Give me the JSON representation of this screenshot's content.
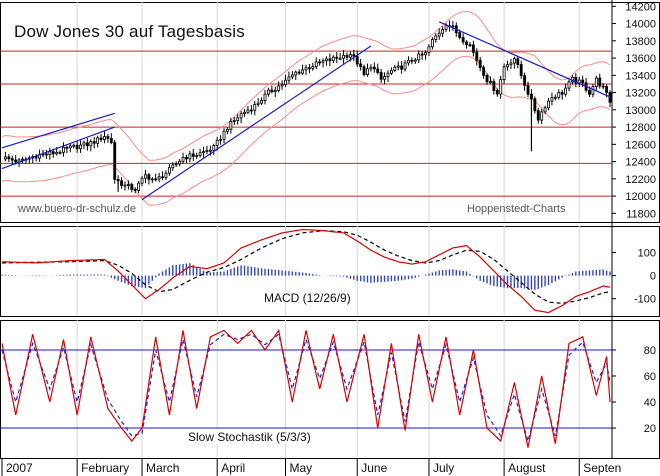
{
  "title": "Dow Jones 30 auf Tagesbasis",
  "watermark_left": "www.buero-dr-schulz.de",
  "watermark_right": "Hoppenstedt-Charts",
  "colors": {
    "price": "#000000",
    "bollinger": "#ff8a8a",
    "support_lines": "#cc2222",
    "trend_lines": "#1a1acc",
    "macd": "#dd0000",
    "signal": "#000000",
    "histogram": "#3344cc",
    "stoch_k": "#dd0000",
    "stoch_d": "#2222cc",
    "stoch_levels": "#1a1acc",
    "grid": "#d8d8d8"
  },
  "chart_data": [
    {
      "type": "candlestick",
      "title": "Dow Jones 30 auf Tagesbasis",
      "ylim": [
        11700,
        14250
      ],
      "yticks": [
        11800,
        12000,
        12200,
        12400,
        12600,
        12800,
        13000,
        13200,
        13400,
        13600,
        13800,
        14000,
        14200
      ],
      "months": [
        "2007",
        "February",
        "March",
        "April",
        "May",
        "June",
        "July",
        "August",
        "Septen"
      ],
      "month_days": [
        0,
        22,
        41,
        63,
        83,
        104,
        125,
        147,
        169
      ],
      "total_days": 178,
      "close_path": [
        [
          0,
          12450
        ],
        [
          5,
          12400
        ],
        [
          10,
          12470
        ],
        [
          15,
          12500
        ],
        [
          20,
          12560
        ],
        [
          25,
          12600
        ],
        [
          28,
          12650
        ],
        [
          30,
          12700
        ],
        [
          32,
          12630
        ],
        [
          33,
          12200
        ],
        [
          36,
          12120
        ],
        [
          39,
          12080
        ],
        [
          42,
          12240
        ],
        [
          45,
          12180
        ],
        [
          49,
          12300
        ],
        [
          53,
          12450
        ],
        [
          57,
          12480
        ],
        [
          62,
          12560
        ],
        [
          66,
          12800
        ],
        [
          70,
          12950
        ],
        [
          74,
          13050
        ],
        [
          78,
          13200
        ],
        [
          82,
          13300
        ],
        [
          86,
          13430
        ],
        [
          90,
          13500
        ],
        [
          94,
          13560
        ],
        [
          98,
          13600
        ],
        [
          102,
          13650
        ],
        [
          104,
          13550
        ],
        [
          106,
          13400
        ],
        [
          108,
          13520
        ],
        [
          111,
          13350
        ],
        [
          114,
          13450
        ],
        [
          117,
          13500
        ],
        [
          121,
          13600
        ],
        [
          124,
          13650
        ],
        [
          126,
          13800
        ],
        [
          128,
          13900
        ],
        [
          130,
          14000
        ],
        [
          132,
          13950
        ],
        [
          134,
          13850
        ],
        [
          137,
          13750
        ],
        [
          140,
          13500
        ],
        [
          142,
          13350
        ],
        [
          145,
          13200
        ],
        [
          147,
          13500
        ],
        [
          150,
          13600
        ],
        [
          152,
          13400
        ],
        [
          155,
          13100
        ],
        [
          157,
          12900
        ],
        [
          159,
          13050
        ],
        [
          161,
          13150
        ],
        [
          164,
          13200
        ],
        [
          167,
          13350
        ],
        [
          170,
          13300
        ],
        [
          172,
          13200
        ],
        [
          174,
          13350
        ],
        [
          176,
          13250
        ],
        [
          178,
          13100
        ]
      ],
      "horizontal_lines": [
        13680,
        13300,
        12800,
        12380,
        12000
      ],
      "trend_lines": [
        [
          [
            0,
            12320
          ],
          [
            33,
            12800
          ]
        ],
        [
          [
            41,
            11960
          ],
          [
            108,
            13740
          ]
        ],
        [
          [
            0,
            12560
          ],
          [
            33,
            12960
          ]
        ],
        [
          [
            128,
            14020
          ],
          [
            178,
            13150
          ]
        ]
      ],
      "bollinger_width": 260
    },
    {
      "type": "line",
      "title": "MACD (12/26/9)",
      "ylim": [
        -175,
        215
      ],
      "yticks": [
        -100,
        0,
        100
      ],
      "series": [
        {
          "name": "MACD",
          "values": [
            [
              0,
              60
            ],
            [
              10,
              55
            ],
            [
              20,
              65
            ],
            [
              30,
              70
            ],
            [
              34,
              20
            ],
            [
              38,
              -40
            ],
            [
              42,
              -100
            ],
            [
              46,
              -60
            ],
            [
              50,
              -10
            ],
            [
              55,
              40
            ],
            [
              60,
              30
            ],
            [
              65,
              55
            ],
            [
              70,
              120
            ],
            [
              76,
              155
            ],
            [
              82,
              185
            ],
            [
              88,
              200
            ],
            [
              94,
              195
            ],
            [
              100,
              185
            ],
            [
              104,
              150
            ],
            [
              108,
              110
            ],
            [
              112,
              80
            ],
            [
              116,
              60
            ],
            [
              120,
              50
            ],
            [
              124,
              60
            ],
            [
              128,
              90
            ],
            [
              132,
              120
            ],
            [
              136,
              130
            ],
            [
              140,
              80
            ],
            [
              144,
              20
            ],
            [
              148,
              -40
            ],
            [
              152,
              -90
            ],
            [
              156,
              -150
            ],
            [
              160,
              -160
            ],
            [
              164,
              -130
            ],
            [
              168,
              -90
            ],
            [
              172,
              -70
            ],
            [
              176,
              -45
            ],
            [
              178,
              -50
            ]
          ]
        },
        {
          "name": "Signal",
          "values": [
            [
              0,
              55
            ],
            [
              10,
              58
            ],
            [
              20,
              60
            ],
            [
              30,
              65
            ],
            [
              34,
              45
            ],
            [
              38,
              10
            ],
            [
              42,
              -40
            ],
            [
              46,
              -70
            ],
            [
              50,
              -60
            ],
            [
              55,
              -20
            ],
            [
              60,
              15
            ],
            [
              65,
              35
            ],
            [
              70,
              70
            ],
            [
              76,
              120
            ],
            [
              82,
              160
            ],
            [
              88,
              185
            ],
            [
              94,
              195
            ],
            [
              100,
              190
            ],
            [
              104,
              175
            ],
            [
              108,
              145
            ],
            [
              112,
              110
            ],
            [
              116,
              85
            ],
            [
              120,
              65
            ],
            [
              124,
              55
            ],
            [
              128,
              65
            ],
            [
              132,
              90
            ],
            [
              136,
              110
            ],
            [
              140,
              105
            ],
            [
              144,
              70
            ],
            [
              148,
              20
            ],
            [
              152,
              -30
            ],
            [
              156,
              -80
            ],
            [
              160,
              -115
            ],
            [
              164,
              -120
            ],
            [
              168,
              -110
            ],
            [
              172,
              -95
            ],
            [
              176,
              -75
            ],
            [
              178,
              -70
            ]
          ]
        }
      ]
    },
    {
      "type": "line",
      "title": "Slow Stochastik (5/3/3)",
      "ylim": [
        -3,
        103
      ],
      "yticks": [
        20,
        40,
        60,
        80
      ],
      "levels": [
        20,
        80
      ],
      "series": [
        {
          "name": "%K",
          "values": [
            [
              0,
              85
            ],
            [
              4,
              30
            ],
            [
              9,
              92
            ],
            [
              14,
              40
            ],
            [
              18,
              88
            ],
            [
              22,
              30
            ],
            [
              26,
              90
            ],
            [
              31,
              35
            ],
            [
              35,
              20
            ],
            [
              38,
              10
            ],
            [
              41,
              20
            ],
            [
              45,
              90
            ],
            [
              49,
              30
            ],
            [
              53,
              95
            ],
            [
              57,
              35
            ],
            [
              61,
              90
            ],
            [
              65,
              95
            ],
            [
              69,
              85
            ],
            [
              73,
              95
            ],
            [
              77,
              80
            ],
            [
              81,
              95
            ],
            [
              85,
              40
            ],
            [
              89,
              95
            ],
            [
              93,
              50
            ],
            [
              97,
              92
            ],
            [
              101,
              40
            ],
            [
              106,
              92
            ],
            [
              110,
              20
            ],
            [
              114,
              85
            ],
            [
              118,
              18
            ],
            [
              122,
              92
            ],
            [
              126,
              40
            ],
            [
              130,
              90
            ],
            [
              134,
              30
            ],
            [
              138,
              80
            ],
            [
              142,
              20
            ],
            [
              146,
              10
            ],
            [
              150,
              55
            ],
            [
              154,
              5
            ],
            [
              158,
              60
            ],
            [
              162,
              8
            ],
            [
              166,
              85
            ],
            [
              170,
              90
            ],
            [
              174,
              45
            ],
            [
              177,
              75
            ],
            [
              178,
              40
            ]
          ]
        },
        {
          "name": "%D",
          "values": [
            [
              0,
              80
            ],
            [
              4,
              40
            ],
            [
              9,
              85
            ],
            [
              14,
              50
            ],
            [
              18,
              82
            ],
            [
              22,
              40
            ],
            [
              26,
              84
            ],
            [
              31,
              42
            ],
            [
              35,
              25
            ],
            [
              38,
              14
            ],
            [
              41,
              16
            ],
            [
              45,
              80
            ],
            [
              49,
              40
            ],
            [
              53,
              88
            ],
            [
              57,
              44
            ],
            [
              61,
              84
            ],
            [
              65,
              92
            ],
            [
              69,
              88
            ],
            [
              73,
              92
            ],
            [
              77,
              84
            ],
            [
              81,
              92
            ],
            [
              85,
              50
            ],
            [
              89,
              88
            ],
            [
              93,
              58
            ],
            [
              97,
              86
            ],
            [
              101,
              50
            ],
            [
              106,
              86
            ],
            [
              110,
              30
            ],
            [
              114,
              78
            ],
            [
              118,
              25
            ],
            [
              122,
              86
            ],
            [
              126,
              50
            ],
            [
              130,
              84
            ],
            [
              134,
              40
            ],
            [
              138,
              74
            ],
            [
              142,
              30
            ],
            [
              146,
              14
            ],
            [
              150,
              46
            ],
            [
              154,
              10
            ],
            [
              158,
              50
            ],
            [
              162,
              14
            ],
            [
              166,
              76
            ],
            [
              170,
              86
            ],
            [
              174,
              55
            ],
            [
              177,
              70
            ],
            [
              178,
              55
            ]
          ]
        }
      ]
    }
  ],
  "macd_label": "MACD (12/26/9)",
  "stoch_label": "Slow Stochastik (5/3/3)"
}
